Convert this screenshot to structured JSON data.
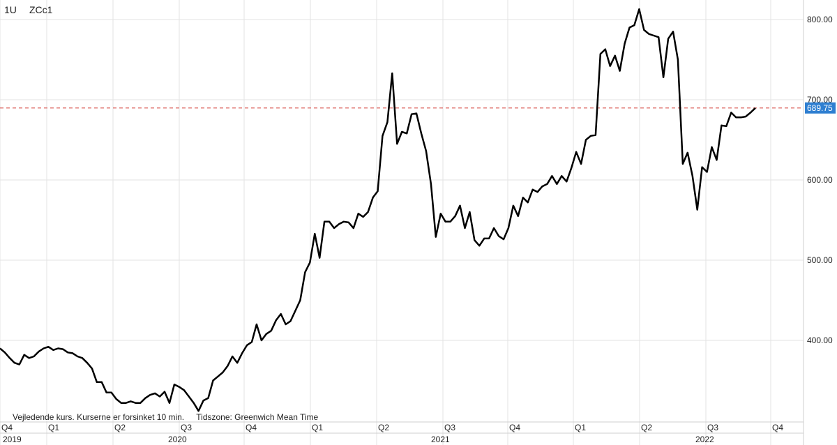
{
  "header": {
    "interval": "1U",
    "symbol": "ZCc1"
  },
  "footnote": {
    "delay_notice": "Vejledende kurs. Kurserne er forsinket 10 min.",
    "timezone": "Tidszone: Greenwich Mean Time"
  },
  "colors": {
    "line": "#000000",
    "grid": "#e3e3e3",
    "ref_line": "#d9534f",
    "last_label_bg": "#2f7fd1"
  },
  "chart_data": {
    "type": "line",
    "title": "",
    "xlabel": "",
    "ylabel": "",
    "ylim": [
      305,
      815
    ],
    "y_ticks": [
      400,
      500,
      600,
      700,
      800
    ],
    "y_tick_labels": [
      "400.00",
      "500.00",
      "600.00",
      "700.00",
      "800.00"
    ],
    "grid": true,
    "last_value": 689.75,
    "last_value_label": "689.75",
    "reference_line": 689.75,
    "quarter_labels": [
      "Q4",
      "Q1",
      "Q2",
      "Q3",
      "Q4",
      "Q1",
      "Q2",
      "Q3",
      "Q4",
      "Q1",
      "Q2",
      "Q3",
      "Q4"
    ],
    "year_labels": [
      "2019",
      "2020",
      "2021",
      "2022"
    ],
    "series": [
      {
        "values": [
          390,
          385,
          378,
          372,
          370,
          382,
          378,
          380,
          386,
          390,
          392,
          388,
          390,
          389,
          385,
          384,
          380,
          378,
          372,
          365,
          348,
          348,
          335,
          335,
          327,
          322,
          322,
          324,
          322,
          322,
          328,
          332,
          334,
          330,
          336,
          322,
          345,
          342,
          338,
          330,
          322,
          312,
          325,
          328,
          350,
          355,
          360,
          368,
          380,
          372,
          384,
          394,
          398,
          420,
          400,
          408,
          412,
          425,
          433,
          420,
          424,
          437,
          450,
          485,
          497,
          533,
          503,
          548,
          548,
          540,
          545,
          548,
          547,
          540,
          558,
          554,
          560,
          578,
          586,
          655,
          672,
          733,
          645,
          660,
          658,
          682,
          683,
          658,
          636,
          595,
          529,
          558,
          548,
          548,
          555,
          568,
          540,
          560,
          525,
          518,
          527,
          527,
          540,
          530,
          526,
          540,
          568,
          555,
          578,
          572,
          588,
          585,
          592,
          595,
          605,
          595,
          605,
          598,
          615,
          635,
          620,
          650,
          655,
          656,
          757,
          763,
          742,
          755,
          736,
          770,
          790,
          793,
          813,
          787,
          782,
          780,
          778,
          728,
          776,
          785,
          750,
          620,
          634,
          605,
          563,
          616,
          610,
          641,
          625,
          668,
          667,
          684,
          678,
          678,
          679,
          684,
          689.75
        ]
      }
    ]
  }
}
